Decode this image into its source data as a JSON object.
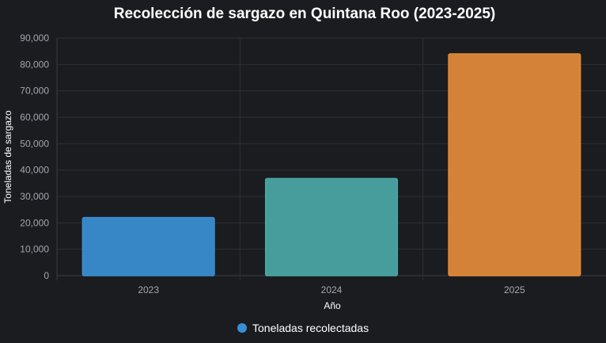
{
  "chart_data": {
    "type": "bar",
    "title": "Recolección de sargazo en Quintana Roo (2023-2025)",
    "xlabel": "Año",
    "ylabel": "Toneladas de sargazo",
    "categories": [
      "2023",
      "2024",
      "2025"
    ],
    "series": [
      {
        "name": "Toneladas recolectadas",
        "values": [
          22000,
          36800,
          84000
        ],
        "colors": [
          "#3a8fd4",
          "#4aa8a6",
          "#e38b3a"
        ]
      }
    ],
    "ylim": [
      0,
      90000
    ],
    "yticks": [
      "0",
      "10,000",
      "20,000",
      "30,000",
      "40,000",
      "50,000",
      "60,000",
      "70,000",
      "80,000",
      "90,000"
    ],
    "grid": true,
    "legend": "bottom",
    "legend_color": "#3a8fd4"
  }
}
